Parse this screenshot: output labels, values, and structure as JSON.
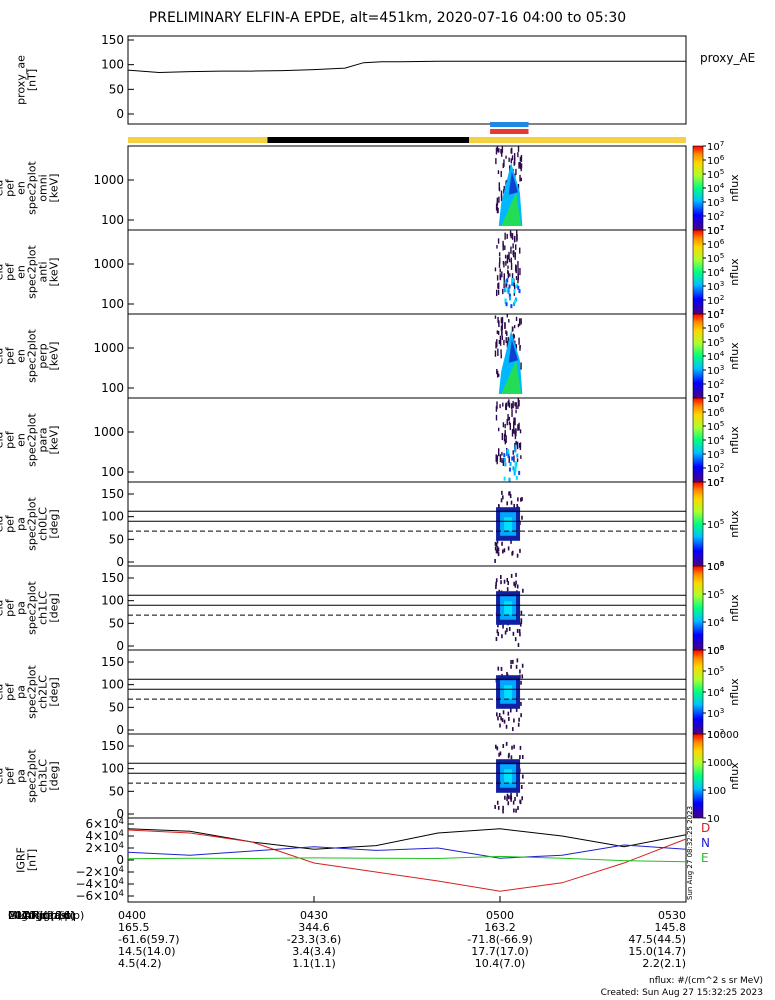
{
  "title": "PRELIMINARY ELFIN-A EPDE, alt=451km, 2020-07-16 04:00 to 05:30",
  "chart_data": {
    "type": "heatmap",
    "x_range": [
      "04:00",
      "05:30"
    ],
    "ae_panel": {
      "ylabel": [
        "proxy_ae",
        "[nT]"
      ],
      "yticks": [
        "150",
        "100",
        "50",
        "0"
      ],
      "ylim": [
        0,
        150
      ],
      "legend": "proxy_AE",
      "x_minutes": [
        0,
        5,
        10,
        15,
        20,
        25,
        30,
        35,
        38,
        41,
        44,
        50,
        60,
        70,
        80,
        90
      ],
      "values": [
        89,
        84,
        86,
        87,
        87,
        88,
        90,
        93,
        104,
        106,
        106,
        107,
        107,
        107,
        107,
        107
      ]
    },
    "status_bar": {
      "segments": [
        {
          "from": 0,
          "to": 22.5,
          "color": "#f5d142"
        },
        {
          "from": 22.5,
          "to": 55,
          "color": "#000000"
        },
        {
          "from": 55,
          "to": 90,
          "color": "#f5d142"
        }
      ],
      "markers": [
        {
          "from": 58.4,
          "to": 64.6,
          "color": "#1e88e5"
        },
        {
          "from": 58.4,
          "to": 64.6,
          "color": "#e53935"
        }
      ]
    },
    "spectra_panels": [
      {
        "ylabel": [
          "ela",
          "pef",
          "en",
          "spec2plot",
          "omni",
          "[keV]"
        ],
        "yticks": [
          "1000",
          "100"
        ],
        "cbar": [
          "10^7",
          "10^6",
          "10^5",
          "10^4",
          "10^3",
          "10^2",
          "10^1"
        ],
        "cbar_label": "nflux"
      },
      {
        "ylabel": [
          "ela",
          "pef",
          "en",
          "spec2plot",
          "anti",
          "[keV]"
        ],
        "yticks": [
          "1000",
          "100"
        ],
        "cbar": [
          "10^7",
          "10^6",
          "10^5",
          "10^4",
          "10^3",
          "10^2",
          "10^1"
        ],
        "cbar_label": "nflux"
      },
      {
        "ylabel": [
          "ela",
          "pef",
          "en",
          "spec2plot",
          "perp",
          "[keV]"
        ],
        "yticks": [
          "1000",
          "100"
        ],
        "cbar": [
          "10^7",
          "10^6",
          "10^5",
          "10^4",
          "10^3",
          "10^2",
          "10^1"
        ],
        "cbar_label": "nflux"
      },
      {
        "ylabel": [
          "ela",
          "pef",
          "en",
          "spec2plot",
          "para",
          "[keV]"
        ],
        "yticks": [
          "1000",
          "100"
        ],
        "cbar": [
          "10^7",
          "10^6",
          "10^5",
          "10^4",
          "10^3",
          "10^2",
          "10^1"
        ],
        "cbar_label": "nflux"
      }
    ],
    "pitch_panels": [
      {
        "ylabel": [
          "ela",
          "pef",
          "pa",
          "spec2plot",
          "ch0LC",
          "[deg]"
        ],
        "yticks": [
          "150",
          "100",
          "50",
          "0"
        ],
        "cbar": [
          "10^7",
          "10^5",
          "10^3"
        ],
        "cbar_label": "nflux"
      },
      {
        "ylabel": [
          "ela",
          "pef",
          "pa",
          "spec2plot",
          "ch1LC",
          "[deg]"
        ],
        "yticks": [
          "150",
          "100",
          "50",
          "0"
        ],
        "cbar": [
          "10^6",
          "10^5",
          "10^4",
          "10^3"
        ],
        "cbar_label": "nflux"
      },
      {
        "ylabel": [
          "ela",
          "pef",
          "pa",
          "spec2plot",
          "ch2LC",
          "[deg]"
        ],
        "yticks": [
          "150",
          "100",
          "50",
          "0"
        ],
        "cbar": [
          "10^6",
          "10^5",
          "10^4",
          "10^3",
          "10^2"
        ],
        "cbar_label": "nflux"
      },
      {
        "ylabel": [
          "ela",
          "pef",
          "pa",
          "spec2plot",
          "ch3LC",
          "[deg]"
        ],
        "yticks": [
          "150",
          "100",
          "50",
          "0"
        ],
        "cbar": [
          "10000",
          "1000",
          "100",
          "10"
        ],
        "cbar_label": "nflux"
      }
    ],
    "igrf_panel": {
      "ylabel": [
        "IGRF",
        "[nT]"
      ],
      "yticks": [
        "6×10^4",
        "4×10^4",
        "2×10^4",
        "0",
        "−2×10^4",
        "−4×10^4",
        "−6×10^4"
      ],
      "ylim": [
        -60000,
        60000
      ],
      "legend": [
        {
          "name": "D",
          "color": "#d62020"
        },
        {
          "name": "N",
          "color": "#2020d0"
        },
        {
          "name": "E",
          "color": "#20c020"
        }
      ],
      "x_minutes": [
        0,
        10,
        20,
        30,
        40,
        50,
        60,
        70,
        80,
        90
      ],
      "series": [
        {
          "name": "black",
          "color": "#000000",
          "values": [
            52000,
            48000,
            30000,
            18000,
            24000,
            45000,
            52000,
            40000,
            22000,
            42000
          ]
        },
        {
          "name": "D",
          "color": "#d62020",
          "values": [
            50000,
            45000,
            30000,
            -5000,
            -20000,
            -35000,
            -52000,
            -38000,
            -5000,
            35000
          ]
        },
        {
          "name": "N",
          "color": "#2020d0",
          "values": [
            13000,
            8000,
            15000,
            22000,
            16000,
            20000,
            3000,
            8000,
            25000,
            18000
          ]
        },
        {
          "name": "E",
          "color": "#20c020",
          "values": [
            2000,
            3000,
            2500,
            3500,
            3000,
            2500,
            6000,
            3000,
            -1000,
            -3000
          ]
        }
      ]
    },
    "x_axis": {
      "labels": [
        "2020 Jul 16",
        "GLON (east)",
        "MLAT-igrf(dip)",
        "MLT-igrf(dip)",
        "L-igrf(dip)"
      ],
      "columns": [
        {
          "time": "0400",
          "glon": "165.5",
          "mlat": "-61.6(59.7)",
          "mlt": "14.5(14.0)",
          "l": "4.5(4.2)"
        },
        {
          "time": "0430",
          "glon": "344.6",
          "mlat": "-23.3(3.6)",
          "mlt": "3.4(3.4)",
          "l": "1.1(1.1)"
        },
        {
          "time": "0500",
          "glon": "163.2",
          "mlat": "-71.8(-66.9)",
          "mlt": "17.7(17.0)",
          "l": "10.4(7.0)"
        },
        {
          "time": "0530",
          "glon": "145.8",
          "mlat": "47.5(44.5)",
          "mlt": "15.0(14.7)",
          "l": "2.2(2.1)"
        }
      ]
    },
    "side_stamp": "Sun Aug 27 08:32:25 2023"
  },
  "footer": {
    "units": "nflux: #/(cm^2 s sr MeV)",
    "created": "Created: Sun Aug 27 15:32:25 2023"
  }
}
